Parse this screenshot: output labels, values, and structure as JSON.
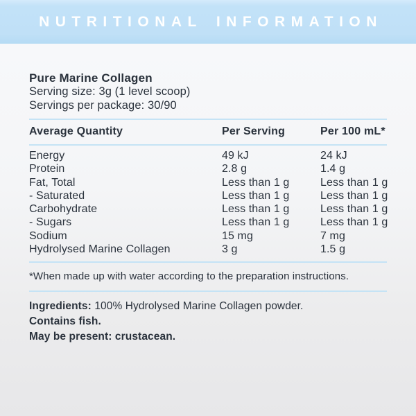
{
  "header": {
    "title": "NUTRITIONAL INFORMATION"
  },
  "product": {
    "name": "Pure Marine Collagen",
    "serving_size": "Serving size: 3g (1 level scoop)",
    "servings_per_package": "Servings per package: 30/90"
  },
  "table": {
    "columns": [
      "Average Quantity",
      "Per Serving",
      "Per 100 mL*"
    ],
    "rows": [
      {
        "name": "Energy",
        "per_serving": "49 kJ",
        "per_100ml": "24 kJ"
      },
      {
        "name": "Protein",
        "per_serving": "2.8 g",
        "per_100ml": "1.4 g"
      },
      {
        "name": "Fat, Total",
        "per_serving": "Less than 1 g",
        "per_100ml": "Less than 1 g"
      },
      {
        "name": "- Saturated",
        "per_serving": "Less than 1 g",
        "per_100ml": "Less than 1 g"
      },
      {
        "name": "Carbohydrate",
        "per_serving": "Less than 1 g",
        "per_100ml": "Less than 1 g"
      },
      {
        "name": "- Sugars",
        "per_serving": "Less than 1 g",
        "per_100ml": "Less than 1 g"
      },
      {
        "name": "Sodium",
        "per_serving": "15 mg",
        "per_100ml": "7 mg"
      },
      {
        "name": "Hydrolysed Marine Collagen",
        "per_serving": "3 g",
        "per_100ml": "1.5 g"
      }
    ]
  },
  "footnote": "*When made up with water according to the preparation instructions.",
  "ingredients": {
    "label": "Ingredients:",
    "value": " 100% Hydrolysed Marine Collagen powder."
  },
  "allergens": {
    "contains": "Contains fish.",
    "may_be_present": "May be present: crustacean."
  },
  "colors": {
    "header_bg": "#c0e0f7",
    "header_text": "#ffffff",
    "body_text": "#2a323c",
    "rule": "#c5e3f5",
    "background_top": "#f8f9fb",
    "background_bottom": "#e7e7e9"
  }
}
